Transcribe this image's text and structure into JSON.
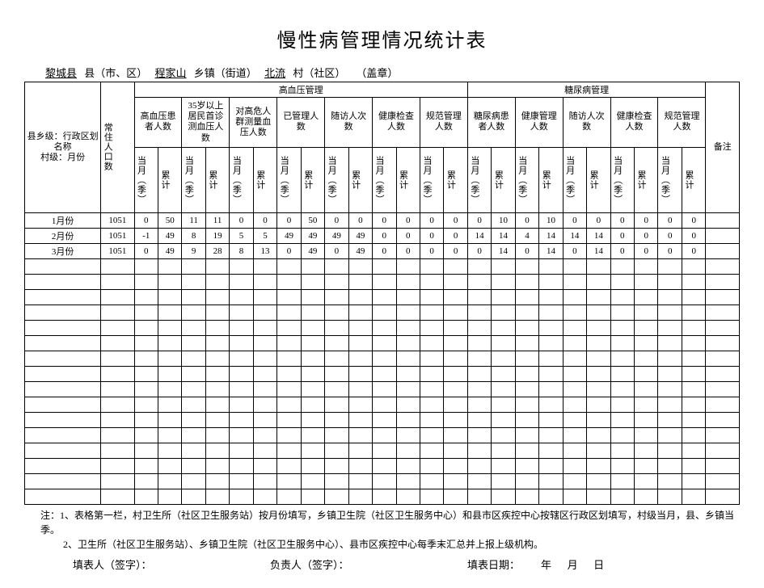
{
  "title": "慢性病管理情况统计表",
  "header": {
    "county_value": "黎城县",
    "county_label": "县（市、区）",
    "town_value": "程家山",
    "town_label": "乡镇（街道）",
    "village_value": "北流",
    "village_label": "村（社区）",
    "seal": "（盖章）"
  },
  "col_headers": {
    "row_label_top": "县乡级：行政区划名称",
    "row_label_bottom": "村级：月份",
    "population": "常住人口数",
    "hbp_group": "高血压管理",
    "dm_group": "糖尿病管理",
    "remark": "备注",
    "hbp_patients": "高血压患者人数",
    "hbp_over35": "35岁以上居民首诊测血压人数",
    "hbp_highrisk": "对高危人群测量血压人数",
    "hbp_managed": "已管理人数",
    "hbp_followup": "随访人次数",
    "hbp_health": "健康检查人数",
    "hbp_standard": "规范管理人数",
    "dm_patients": "糖尿病患者人数",
    "dm_managed": "健康管理人数",
    "dm_followup": "随访人次数",
    "dm_health": "健康检查人数",
    "dm_standard": "规范管理人数",
    "month_col": "当月（季）",
    "total_col": "累计"
  },
  "rows": [
    {
      "label": "1月份",
      "pop": "1051",
      "cells": [
        "0",
        "50",
        "11",
        "11",
        "0",
        "0",
        "0",
        "50",
        "0",
        "0",
        "0",
        "0",
        "0",
        "0",
        "0",
        "10",
        "0",
        "10",
        "0",
        "0",
        "0",
        "0",
        "0",
        "0"
      ],
      "remark": ""
    },
    {
      "label": "2月份",
      "pop": "1051",
      "cells": [
        "-1",
        "49",
        "8",
        "19",
        "5",
        "5",
        "49",
        "49",
        "49",
        "49",
        "0",
        "0",
        "0",
        "0",
        "14",
        "14",
        "4",
        "14",
        "14",
        "14",
        "0",
        "0",
        "0",
        "0"
      ],
      "remark": ""
    },
    {
      "label": "3月份",
      "pop": "1051",
      "cells": [
        "0",
        "49",
        "9",
        "28",
        "8",
        "13",
        "0",
        "49",
        "0",
        "49",
        "0",
        "0",
        "0",
        "0",
        "0",
        "14",
        "0",
        "14",
        "0",
        "14",
        "0",
        "0",
        "0",
        "0"
      ],
      "remark": ""
    }
  ],
  "empty_row_count": 16,
  "notes": {
    "line1": "注：1、表格第一栏，村卫生所（社区卫生服务站）按月份填写，乡镇卫生院（社区卫生服务中心）和县市区疾控中心按辖区行政区划填写，村级当月，县、乡镇当季。",
    "line2": "2、卫生所（社区卫生服务站）、乡镇卫生院（社区卫生服务中心）、县市区疾控中心每季末汇总并上报上级机构。"
  },
  "footer": {
    "filler": "填表人（签字）：",
    "responsible": "负责人（签字）：",
    "date_label": "填表日期：",
    "year": "年",
    "month": "月",
    "day": "日"
  },
  "style": {
    "background_color": "#ffffff",
    "border_color": "#000000",
    "text_color": "#000000",
    "title_fontsize": 24,
    "body_fontsize": 12,
    "table_fontsize": 11
  }
}
